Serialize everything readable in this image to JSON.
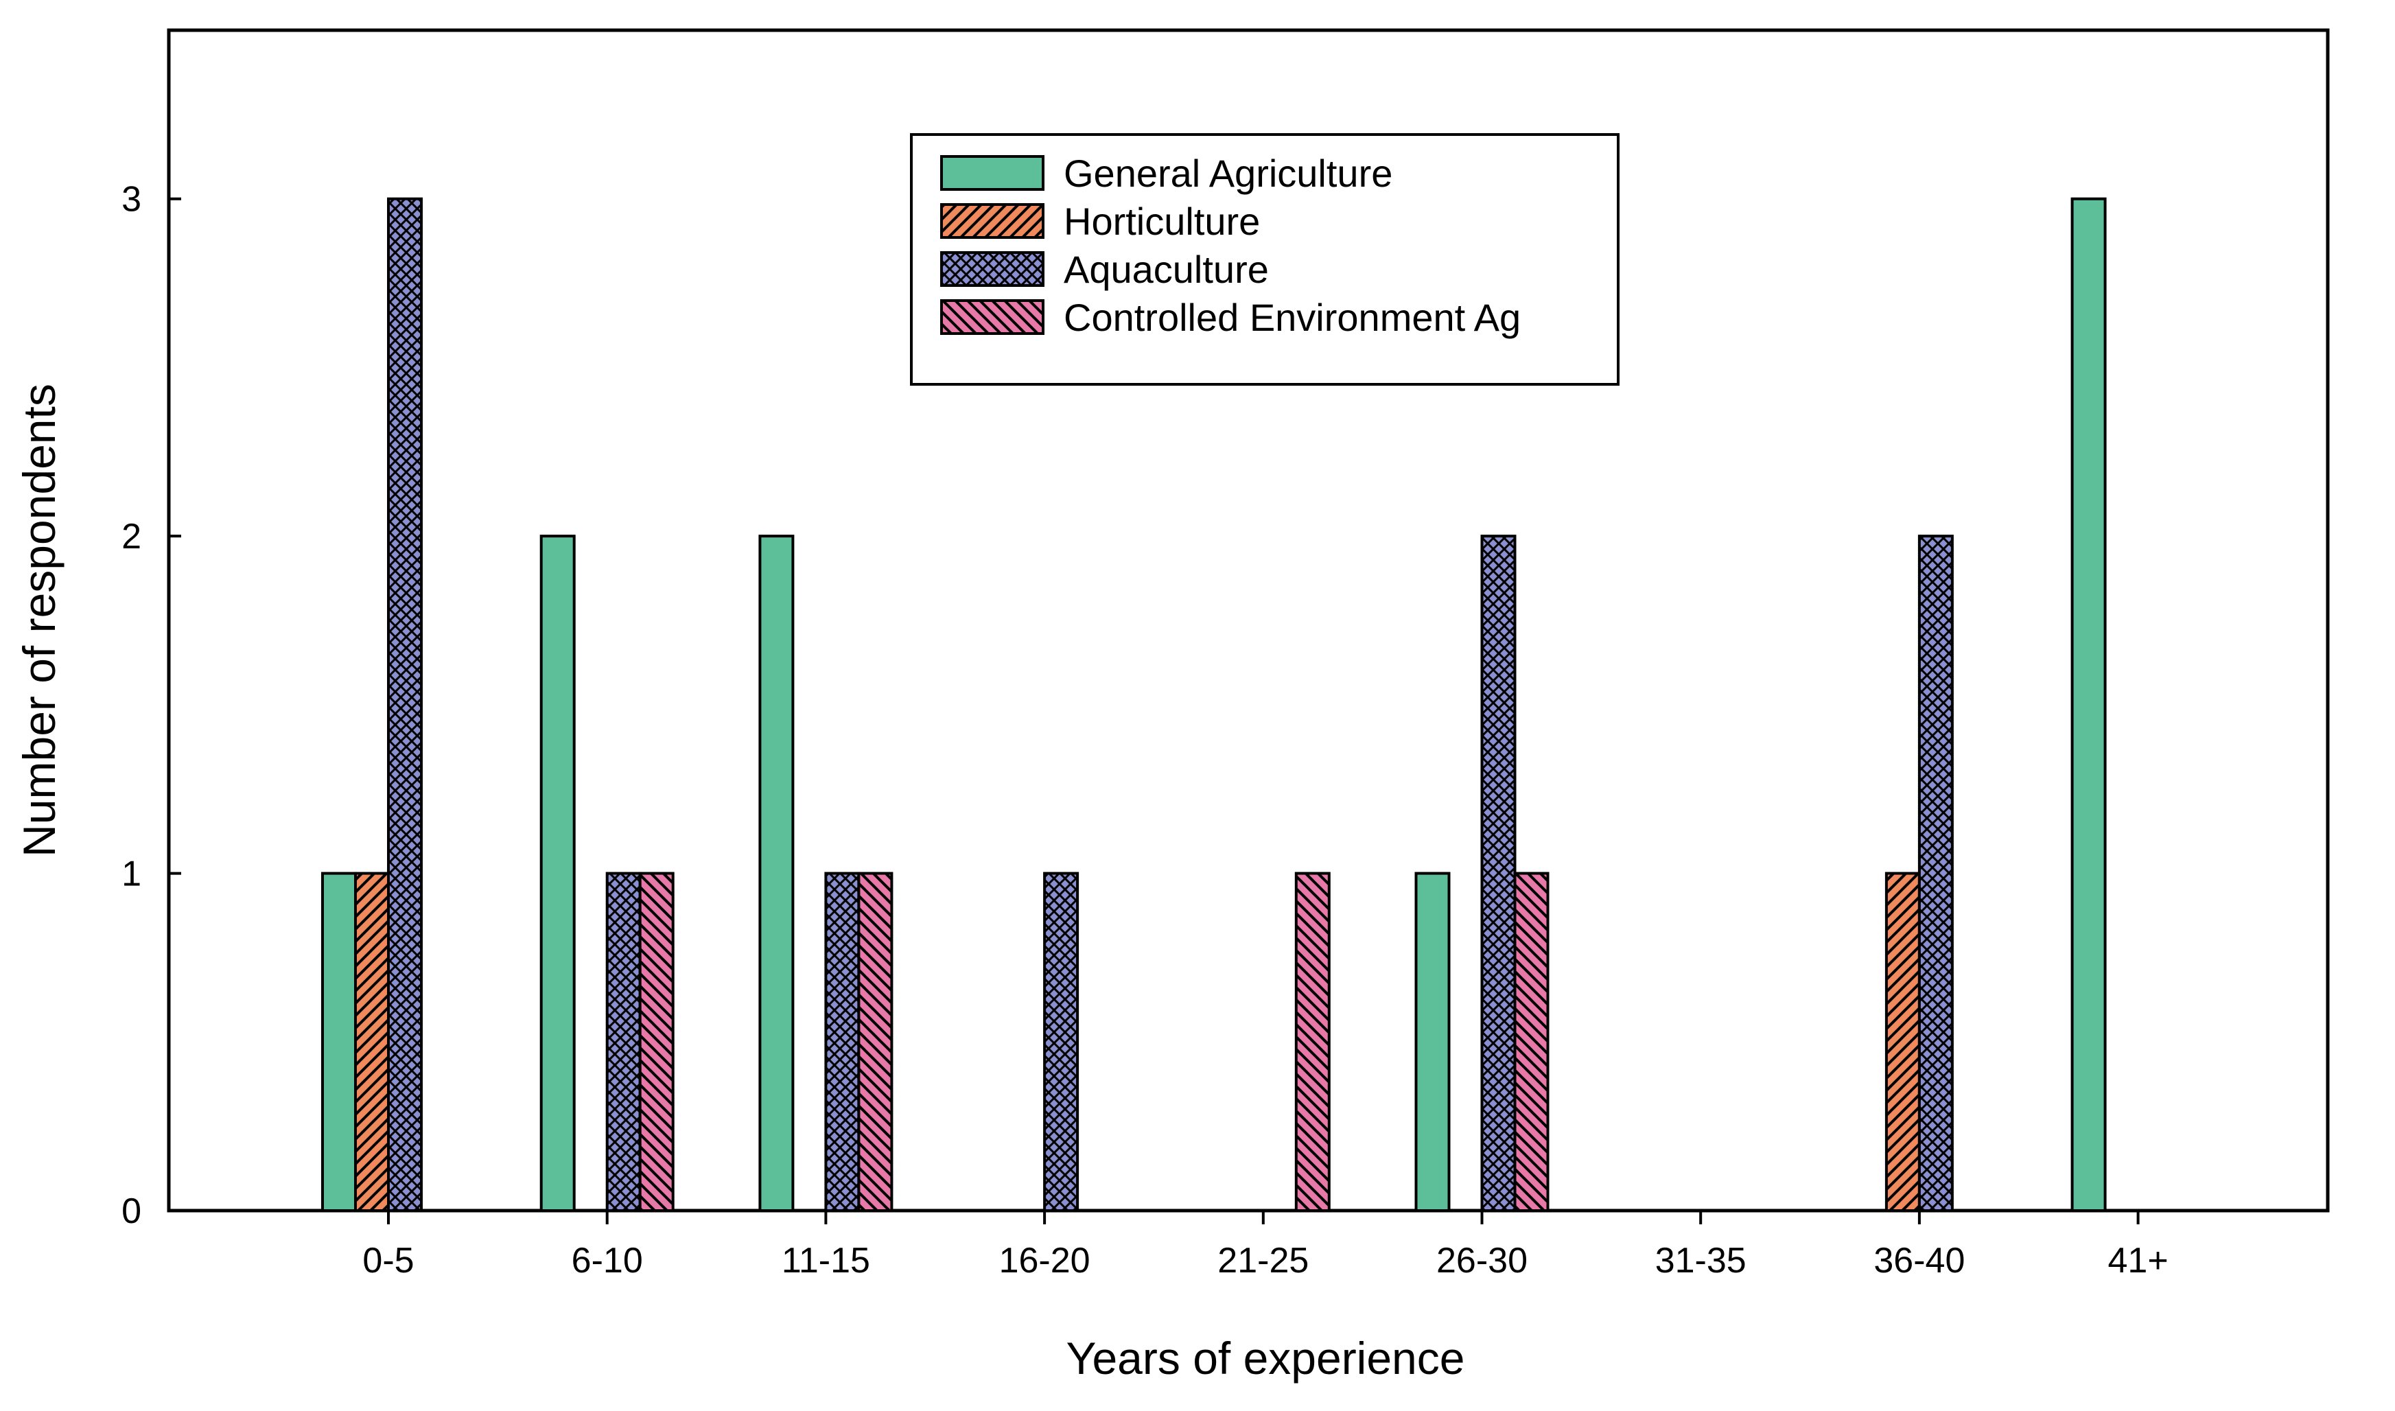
{
  "chart_data": {
    "type": "bar",
    "title": "",
    "xlabel": "Years of experience",
    "ylabel": "Number of respondents",
    "ylim": [
      0,
      3.5
    ],
    "yticks": [
      0,
      1,
      2,
      3
    ],
    "ytick_labels": [
      "0",
      "1",
      "2",
      "3"
    ],
    "grid": false,
    "legend_position": "top-center",
    "categories": [
      "0-5",
      "6-10",
      "11-15",
      "16-20",
      "21-25",
      "26-30",
      "31-35",
      "36-40",
      "41+"
    ],
    "series": [
      {
        "name": "General Agriculture",
        "color": "#5cbf9a",
        "pattern": "solid",
        "values": [
          1,
          2,
          2,
          0,
          0,
          1,
          0,
          0,
          3
        ]
      },
      {
        "name": "Horticulture",
        "color": "#f08a5d",
        "pattern": "forward-diagonal",
        "values": [
          1,
          0,
          0,
          0,
          0,
          0,
          0,
          1,
          0
        ]
      },
      {
        "name": "Aquaculture",
        "color": "#8a8fd0",
        "pattern": "crosshatch",
        "values": [
          3,
          1,
          1,
          1,
          0,
          2,
          0,
          2,
          0
        ]
      },
      {
        "name": "Controlled Environment Ag",
        "color": "#e878a8",
        "pattern": "backward-diagonal",
        "values": [
          0,
          1,
          1,
          0,
          1,
          1,
          0,
          0,
          0
        ]
      }
    ]
  }
}
